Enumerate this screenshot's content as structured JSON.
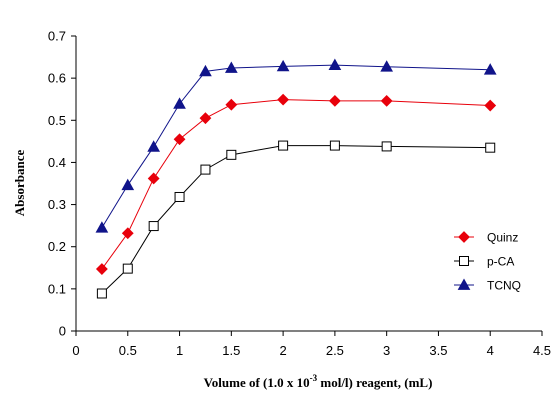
{
  "chart_data": {
    "type": "line",
    "xlabel": "Volume of (1.0 x 10",
    "xlabel_sup": "-3",
    "xlabel_suffix": " mol/l) reagent, (mL)",
    "ylabel": "Absorbance",
    "xlim": [
      0,
      4.5
    ],
    "ylim": [
      0,
      0.7
    ],
    "xticks": [
      "0",
      "0.5",
      "1",
      "1.5",
      "2",
      "2.5",
      "3",
      "3.5",
      "4",
      "4.5"
    ],
    "yticks": [
      "0",
      "0.1",
      "0.2",
      "0.3",
      "0.4",
      "0.5",
      "0.6",
      "0.7"
    ],
    "grid": false,
    "legend_position": "right",
    "series": [
      {
        "name": "Quinz",
        "marker": "diamond",
        "color": "#e8000b",
        "x": [
          0.25,
          0.5,
          0.75,
          1.0,
          1.25,
          1.5,
          2.0,
          2.5,
          3.0,
          4.0
        ],
        "y": [
          0.147,
          0.232,
          0.362,
          0.455,
          0.505,
          0.537,
          0.549,
          0.546,
          0.546,
          0.535
        ]
      },
      {
        "name": "p-CA",
        "marker": "square-open",
        "color": "#000000",
        "x": [
          0.25,
          0.5,
          0.75,
          1.0,
          1.25,
          1.5,
          2.0,
          2.5,
          3.0,
          4.0
        ],
        "y": [
          0.089,
          0.148,
          0.249,
          0.318,
          0.383,
          0.418,
          0.44,
          0.44,
          0.438,
          0.435
        ]
      },
      {
        "name": "TCNQ",
        "marker": "triangle",
        "color": "#10148a",
        "x": [
          0.25,
          0.5,
          0.75,
          1.0,
          1.25,
          1.5,
          2.0,
          2.5,
          3.0,
          4.0
        ],
        "y": [
          0.245,
          0.346,
          0.437,
          0.539,
          0.616,
          0.624,
          0.628,
          0.631,
          0.627,
          0.62
        ]
      }
    ]
  }
}
